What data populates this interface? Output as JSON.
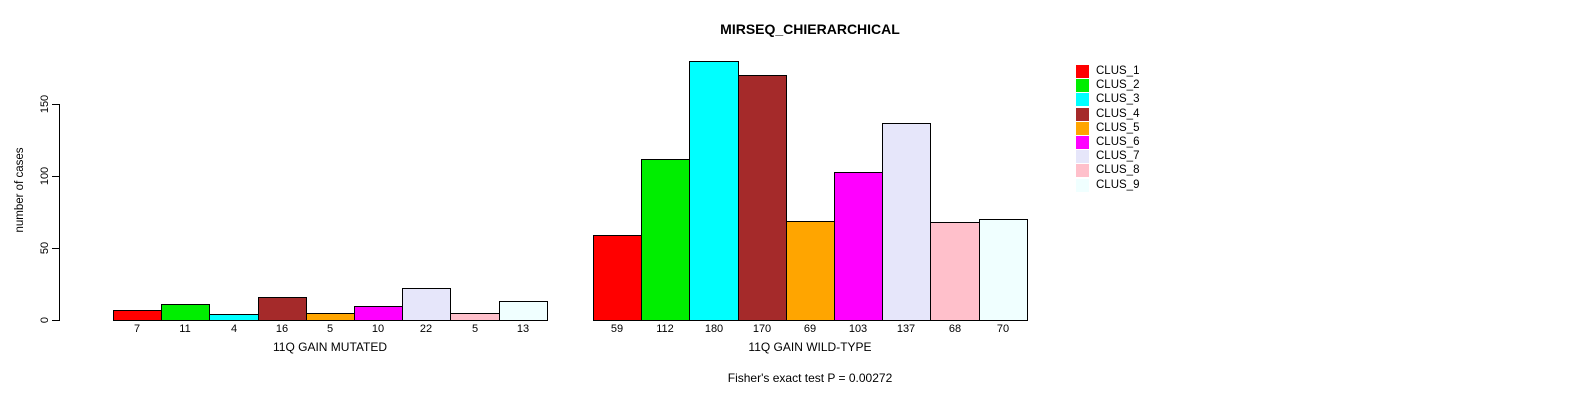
{
  "chart_data": {
    "type": "bar",
    "title": "MIRSEQ_CHIERARCHICAL",
    "ylabel": "number of cases",
    "xlabel": "",
    "ylim": [
      0,
      185
    ],
    "yticks": [
      0,
      50,
      100,
      150
    ],
    "grid": false,
    "legend_position": "top-right",
    "legend": [
      {
        "label": "CLUS_1",
        "color": "#FF0000"
      },
      {
        "label": "CLUS_2",
        "color": "#00EE00"
      },
      {
        "label": "CLUS_3",
        "color": "#00FFFF"
      },
      {
        "label": "CLUS_4",
        "color": "#A52A2A"
      },
      {
        "label": "CLUS_5",
        "color": "#FFA500"
      },
      {
        "label": "CLUS_6",
        "color": "#FF00FF"
      },
      {
        "label": "CLUS_7",
        "color": "#E6E6FA"
      },
      {
        "label": "CLUS_8",
        "color": "#FFC0CB"
      },
      {
        "label": "CLUS_9",
        "color": "#F0FFFF"
      }
    ],
    "groups": [
      {
        "label": "11Q GAIN MUTATED",
        "values": [
          7,
          11,
          4,
          16,
          5,
          10,
          22,
          5,
          13
        ]
      },
      {
        "label": "11Q GAIN WILD-TYPE",
        "values": [
          59,
          112,
          180,
          170,
          69,
          103,
          137,
          68,
          70
        ]
      }
    ],
    "annotation": "Fisher's exact test P = 0.00272"
  }
}
